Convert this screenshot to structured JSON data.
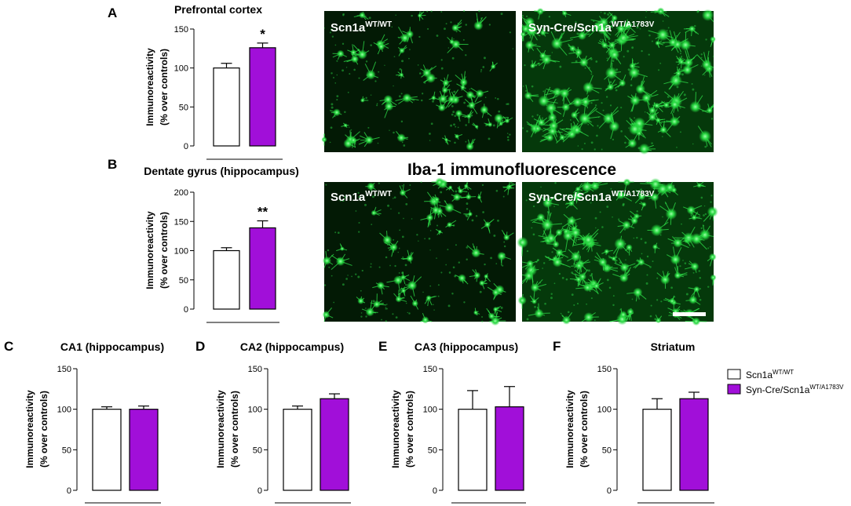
{
  "panel_letters": [
    "A",
    "B",
    "C",
    "D",
    "E",
    "F"
  ],
  "banner": "Iba-1 immunofluorescence",
  "micrographs": [
    {
      "name": "micrograph-a-control",
      "label_base": "Scn1a",
      "label_sup": "WT/WT",
      "density": "low"
    },
    {
      "name": "micrograph-a-mutant",
      "label_base": "Syn-Cre/Scn1a",
      "label_sup": "WT/A1783V",
      "density": "high"
    },
    {
      "name": "micrograph-b-control",
      "label_base": "Scn1a",
      "label_sup": "WT/WT",
      "density": "low"
    },
    {
      "name": "micrograph-b-mutant",
      "label_base": "Syn-Cre/Scn1a",
      "label_sup": "WT/A1783V",
      "density": "high",
      "scale_bar": true
    }
  ],
  "legend": {
    "placement": "right",
    "entries": [
      {
        "base": "Scn1a",
        "sup": "WT/WT",
        "color": "#ffffff"
      },
      {
        "base": "Syn-Cre/Scn1a",
        "sup": "WT/A1783V",
        "color": "#a10fd9"
      }
    ]
  },
  "colors": {
    "control": "#ffffff",
    "mutant": "#a10fd9",
    "fluorescence": "#2fe04a"
  },
  "chart_data": [
    {
      "type": "bar",
      "panel": "A",
      "title": "Prefrontal cortex",
      "ylabel": [
        "Immunoreactivity",
        "(% over controls)"
      ],
      "ylim": [
        0,
        150
      ],
      "yticks": [
        0,
        50,
        100,
        150
      ],
      "series": [
        {
          "name": "Scn1a WT/WT",
          "value": 100,
          "error": 6
        },
        {
          "name": "Syn-Cre/Scn1a WT/A1783V",
          "value": 126,
          "error": 6
        }
      ],
      "annotation": "*"
    },
    {
      "type": "bar",
      "panel": "B",
      "title": "Dentate gyrus (hippocampus)",
      "ylabel": [
        "Immunoreactivity",
        "(% over controls)"
      ],
      "ylim": [
        0,
        200
      ],
      "yticks": [
        0,
        50,
        100,
        150,
        200
      ],
      "series": [
        {
          "name": "Scn1a WT/WT",
          "value": 100,
          "error": 5
        },
        {
          "name": "Syn-Cre/Scn1a WT/A1783V",
          "value": 139,
          "error": 12
        }
      ],
      "annotation": "**"
    },
    {
      "type": "bar",
      "panel": "C",
      "title": "CA1 (hippocampus)",
      "ylabel": [
        "Immunoreactivity",
        "(% over controls)"
      ],
      "ylim": [
        0,
        150
      ],
      "yticks": [
        0,
        50,
        100,
        150
      ],
      "series": [
        {
          "name": "Scn1a WT/WT",
          "value": 100,
          "error": 3
        },
        {
          "name": "Syn-Cre/Scn1a WT/A1783V",
          "value": 100,
          "error": 4
        }
      ],
      "annotation": ""
    },
    {
      "type": "bar",
      "panel": "D",
      "title": "CA2 (hippocampus)",
      "ylabel": [
        "Immunoreactivity",
        "(% over controls)"
      ],
      "ylim": [
        0,
        150
      ],
      "yticks": [
        0,
        50,
        100,
        150
      ],
      "series": [
        {
          "name": "Scn1a WT/WT",
          "value": 100,
          "error": 4
        },
        {
          "name": "Syn-Cre/Scn1a WT/A1783V",
          "value": 113,
          "error": 6
        }
      ],
      "annotation": ""
    },
    {
      "type": "bar",
      "panel": "E",
      "title": "CA3 (hippocampus)",
      "ylabel": [
        "Immunoreactivity",
        "(% over controls)"
      ],
      "ylim": [
        0,
        150
      ],
      "yticks": [
        0,
        50,
        100,
        150
      ],
      "series": [
        {
          "name": "Scn1a WT/WT",
          "value": 100,
          "error": 23
        },
        {
          "name": "Syn-Cre/Scn1a WT/A1783V",
          "value": 103,
          "error": 25
        }
      ],
      "annotation": ""
    },
    {
      "type": "bar",
      "panel": "F",
      "title": "Striatum",
      "ylabel": [
        "Immunoreactivity",
        "(% over controls)"
      ],
      "ylim": [
        0,
        150
      ],
      "yticks": [
        0,
        50,
        100,
        150
      ],
      "series": [
        {
          "name": "Scn1a WT/WT",
          "value": 100,
          "error": 13
        },
        {
          "name": "Syn-Cre/Scn1a WT/A1783V",
          "value": 113,
          "error": 8
        }
      ],
      "annotation": ""
    }
  ]
}
